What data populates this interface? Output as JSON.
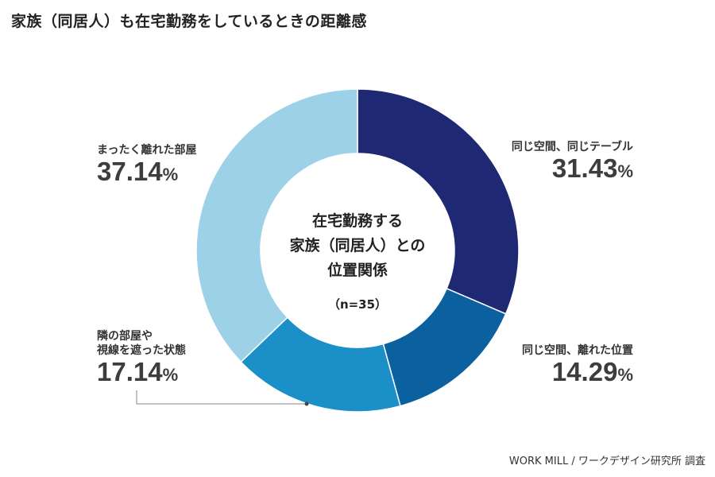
{
  "title": "家族（同居人）も在宅勤務をしているときの距離感",
  "center": {
    "line1": "在宅勤務する",
    "line2": "家族（同居人）との",
    "line3": "位置関係",
    "n": "（n=35）"
  },
  "source": "WORK MILL / ワークデザイン研究所 調査",
  "colors": {
    "same_space_same_table": "#1f2872",
    "same_space_apart": "#0b60a0",
    "next_room": "#1a8fc8",
    "separate_room": "#9dd1e8"
  },
  "chart_data": {
    "type": "pie",
    "variant": "donut",
    "unit": "%",
    "categories": [
      "同じ空間、同じテーブル",
      "同じ空間、離れた位置",
      "隣の部屋や視線を遮った状態",
      "まったく離れた部屋"
    ],
    "values": [
      31.43,
      14.29,
      17.14,
      37.14
    ],
    "label_lines": [
      [
        "同じ空間、同じテーブル"
      ],
      [
        "同じ空間、離れた位置"
      ],
      [
        "隣の部屋や",
        "視線を遮った状態"
      ],
      [
        "まったく離れた部屋"
      ]
    ],
    "value_labels": [
      "31.43",
      "14.29",
      "17.14",
      "37.14"
    ],
    "colors": [
      "#1f2872",
      "#0b60a0",
      "#1a8fc8",
      "#9dd1e8"
    ]
  }
}
